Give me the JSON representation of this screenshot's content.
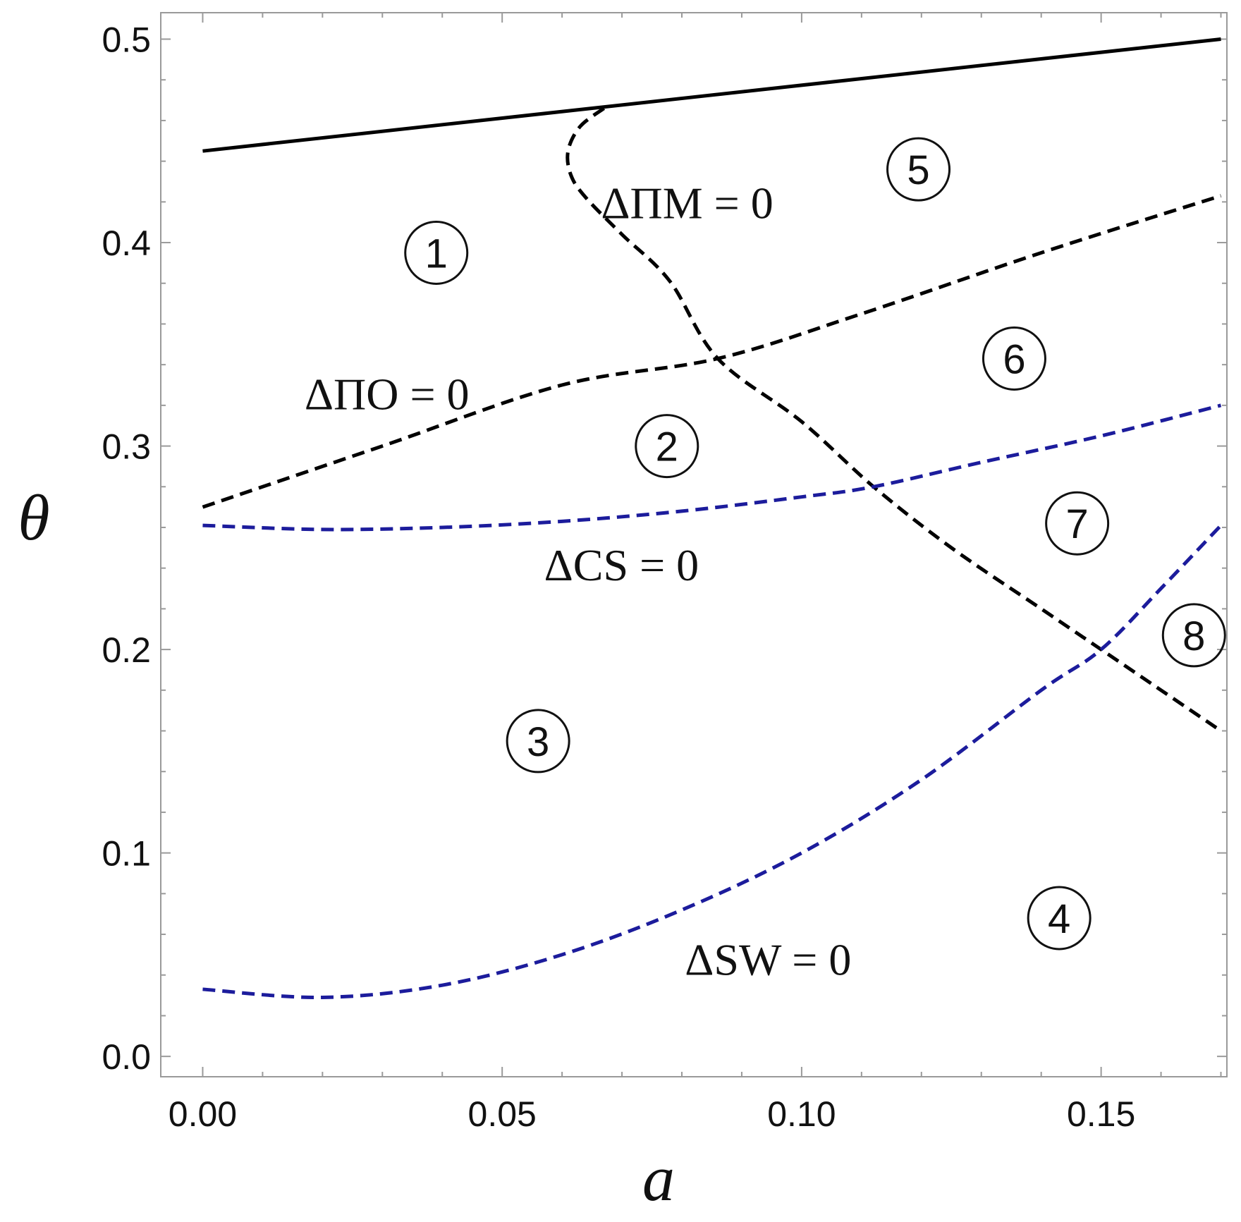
{
  "chart_data": {
    "type": "line",
    "title": "",
    "xlabel": "a",
    "ylabel": "θ",
    "xlim": [
      -0.007,
      0.171
    ],
    "ylim": [
      -0.01,
      0.513
    ],
    "xticks": [
      {
        "value": 0.0,
        "label": "0.00"
      },
      {
        "value": 0.05,
        "label": "0.05"
      },
      {
        "value": 0.1,
        "label": "0.10"
      },
      {
        "value": 0.15,
        "label": "0.15"
      }
    ],
    "yticks": [
      {
        "value": 0.0,
        "label": "0.0"
      },
      {
        "value": 0.1,
        "label": "0.1"
      },
      {
        "value": 0.2,
        "label": "0.2"
      },
      {
        "value": 0.3,
        "label": "0.3"
      },
      {
        "value": 0.4,
        "label": "0.4"
      },
      {
        "value": 0.5,
        "label": "0.5"
      }
    ],
    "series": [
      {
        "label": "",
        "color": "#000000",
        "style": "solid",
        "points": [
          [
            0.0,
            0.445
          ],
          [
            0.17,
            0.5
          ]
        ]
      },
      {
        "label": "ΔΠM = 0",
        "color": "#000000",
        "style": "dashed",
        "points": [
          [
            0.067,
            0.466
          ],
          [
            0.063,
            0.457
          ],
          [
            0.061,
            0.445
          ],
          [
            0.0615,
            0.433
          ],
          [
            0.064,
            0.422
          ],
          [
            0.07,
            0.404
          ],
          [
            0.078,
            0.381
          ],
          [
            0.086,
            0.343
          ],
          [
            0.1,
            0.312
          ],
          [
            0.112,
            0.28
          ],
          [
            0.125,
            0.25
          ],
          [
            0.14,
            0.22
          ],
          [
            0.15,
            0.2
          ],
          [
            0.16,
            0.18
          ],
          [
            0.17,
            0.16
          ]
        ]
      },
      {
        "label": "ΔΠO = 0",
        "color": "#000000",
        "style": "dashed",
        "points": [
          [
            0.0,
            0.27
          ],
          [
            0.03,
            0.3
          ],
          [
            0.06,
            0.33
          ],
          [
            0.086,
            0.343
          ],
          [
            0.11,
            0.365
          ],
          [
            0.14,
            0.395
          ],
          [
            0.17,
            0.423
          ]
        ]
      },
      {
        "label": "ΔCS = 0",
        "color": "#1c1c9c",
        "style": "dashed",
        "points": [
          [
            0.0,
            0.261
          ],
          [
            0.02,
            0.259
          ],
          [
            0.04,
            0.26
          ],
          [
            0.06,
            0.263
          ],
          [
            0.08,
            0.268
          ],
          [
            0.1,
            0.275
          ],
          [
            0.112,
            0.28
          ],
          [
            0.13,
            0.292
          ],
          [
            0.15,
            0.305
          ],
          [
            0.17,
            0.32
          ]
        ]
      },
      {
        "label": "ΔSW = 0",
        "color": "#1c1c9c",
        "style": "dashed",
        "points": [
          [
            0.0,
            0.033
          ],
          [
            0.02,
            0.029
          ],
          [
            0.04,
            0.035
          ],
          [
            0.06,
            0.05
          ],
          [
            0.08,
            0.072
          ],
          [
            0.1,
            0.1
          ],
          [
            0.12,
            0.136
          ],
          [
            0.14,
            0.18
          ],
          [
            0.15,
            0.2
          ],
          [
            0.16,
            0.23
          ],
          [
            0.17,
            0.261
          ]
        ]
      }
    ],
    "curve_labels": [
      {
        "text": "ΔΠM = 0",
        "x": 0.0665,
        "y": 0.412
      },
      {
        "text": "ΔΠO = 0",
        "x": 0.017,
        "y": 0.318
      },
      {
        "text": "ΔCS = 0",
        "x": 0.057,
        "y": 0.234
      },
      {
        "text": "ΔSW = 0",
        "x": 0.0805,
        "y": 0.04
      }
    ],
    "regions": [
      {
        "label": "1",
        "x": 0.039,
        "y": 0.395
      },
      {
        "label": "2",
        "x": 0.0775,
        "y": 0.3
      },
      {
        "label": "3",
        "x": 0.056,
        "y": 0.155
      },
      {
        "label": "4",
        "x": 0.143,
        "y": 0.068
      },
      {
        "label": "5",
        "x": 0.1195,
        "y": 0.436
      },
      {
        "label": "6",
        "x": 0.1355,
        "y": 0.343
      },
      {
        "label": "7",
        "x": 0.146,
        "y": 0.262
      },
      {
        "label": "8",
        "x": 0.1655,
        "y": 0.207
      }
    ],
    "grid": false,
    "legend": "none"
  }
}
